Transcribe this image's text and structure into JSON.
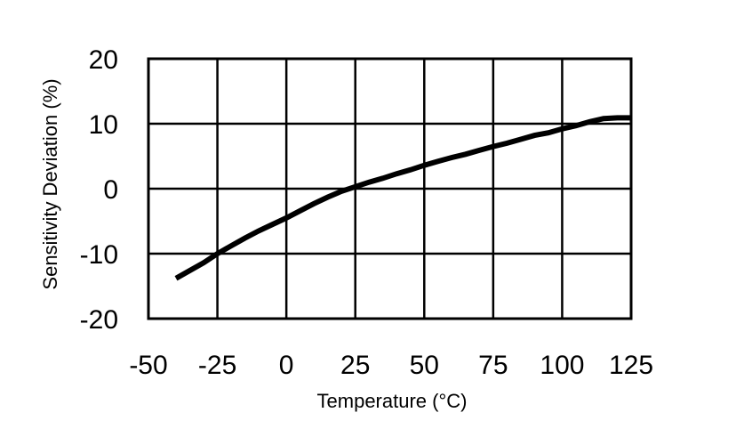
{
  "chart_data": {
    "type": "line",
    "title": "",
    "xlabel": "Temperature (°C)",
    "ylabel": "Sensitivity Deviation (%)",
    "xlim": [
      -50,
      125
    ],
    "ylim": [
      -20,
      20
    ],
    "x_ticks": [
      -50,
      -25,
      0,
      25,
      50,
      75,
      100,
      125
    ],
    "y_ticks": [
      20,
      10,
      0,
      -10,
      -20
    ],
    "x_tick_labels": [
      "-50",
      "-25",
      "0",
      "25",
      "50",
      "75",
      "100",
      "125"
    ],
    "y_tick_labels": [
      "20",
      "10",
      "0",
      "-10",
      "-20"
    ],
    "grid": true,
    "line_color": "#000000",
    "series": [
      {
        "x": [
          -40,
          -35,
          -30,
          -25,
          -20,
          -15,
          -10,
          -5,
          0,
          5,
          10,
          15,
          20,
          25,
          30,
          35,
          40,
          45,
          50,
          55,
          60,
          65,
          70,
          75,
          80,
          85,
          90,
          95,
          100,
          105,
          110,
          115,
          120,
          125
        ],
        "values": [
          -13.8,
          -12.6,
          -11.4,
          -10.0,
          -8.8,
          -7.6,
          -6.5,
          -5.5,
          -4.5,
          -3.4,
          -2.3,
          -1.3,
          -0.4,
          0.3,
          1.0,
          1.6,
          2.3,
          2.9,
          3.6,
          4.2,
          4.8,
          5.3,
          5.9,
          6.5,
          7.0,
          7.6,
          8.2,
          8.6,
          9.2,
          9.7,
          10.3,
          10.8,
          10.9,
          10.9
        ]
      }
    ]
  }
}
